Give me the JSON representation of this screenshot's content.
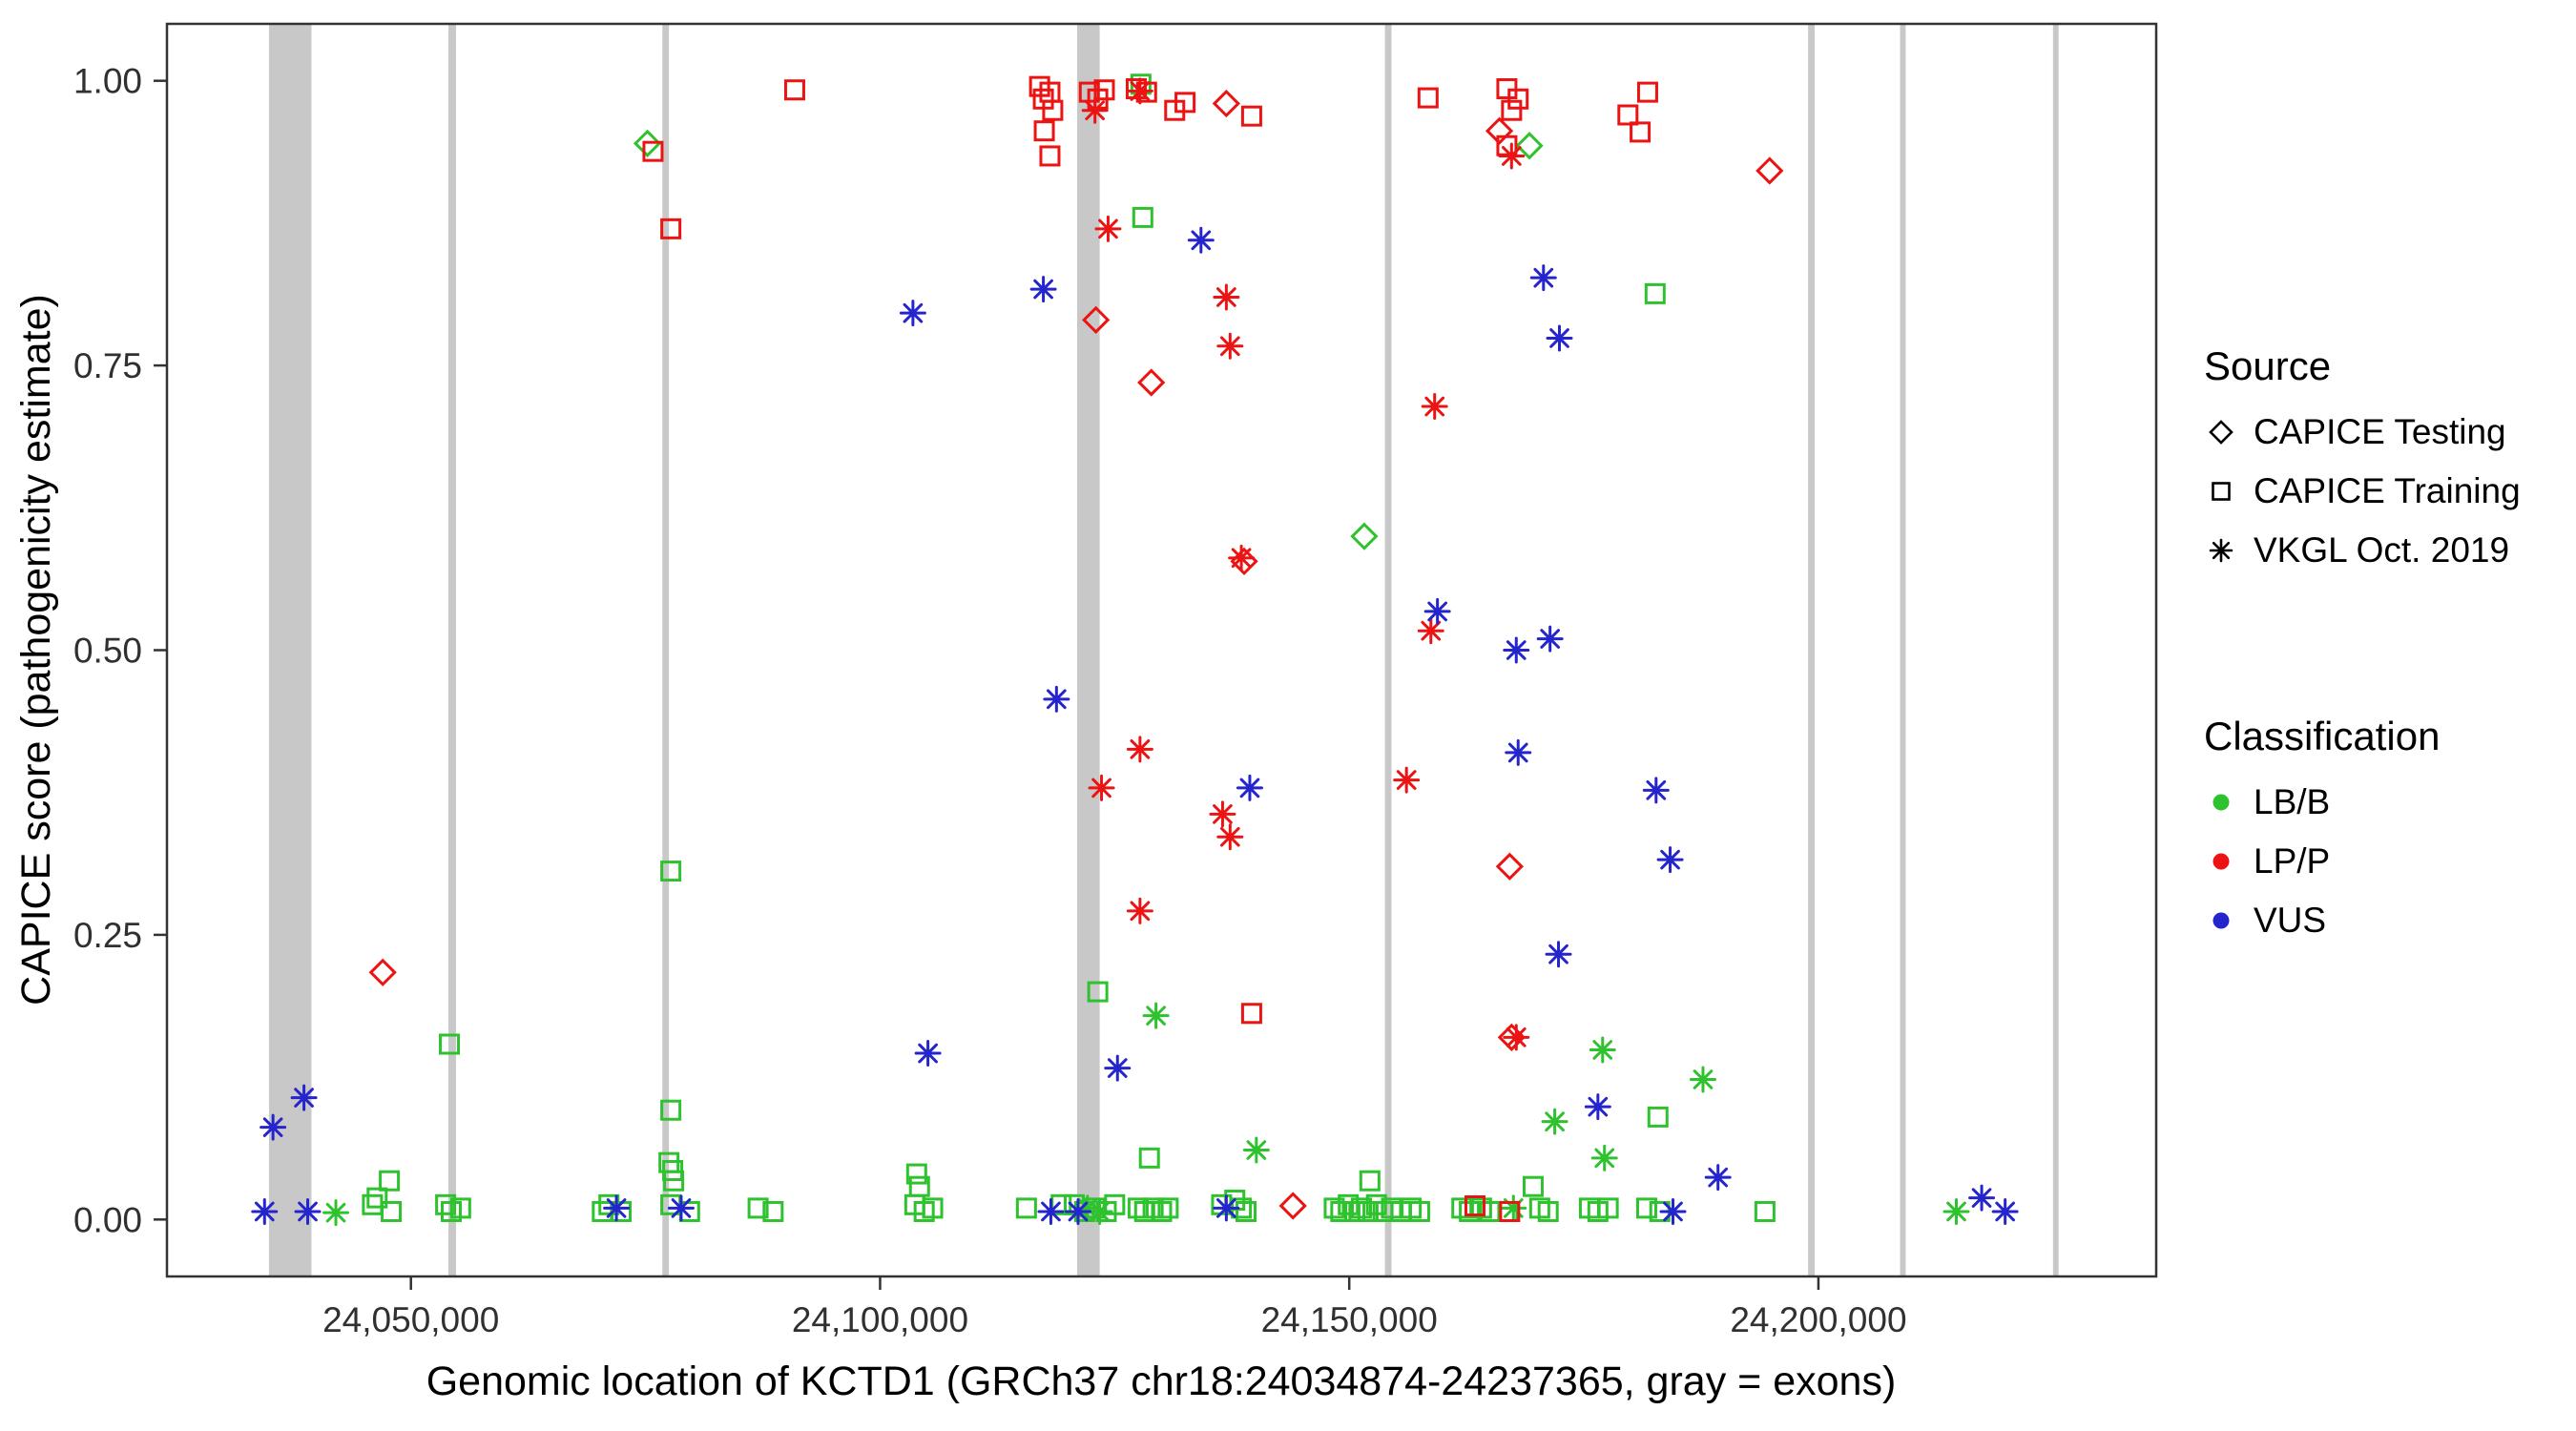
{
  "legend": {
    "source": {
      "title": "Source",
      "items": [
        {
          "label": "CAPICE Testing",
          "shape": "diamond"
        },
        {
          "label": "CAPICE Training",
          "shape": "square"
        },
        {
          "label": "VKGL Oct. 2019",
          "shape": "asterisk"
        }
      ]
    },
    "classification": {
      "title": "Classification",
      "items": [
        {
          "label": "LB/B",
          "color": "#2fc22f"
        },
        {
          "label": "LP/P",
          "color": "#ec1313"
        },
        {
          "label": "VUS",
          "color": "#2525cd"
        }
      ]
    }
  },
  "colors": {
    "lbb": "#2fc22f",
    "lpp": "#ec1313",
    "vus": "#2525cd",
    "exon": "#c8c8c8",
    "axis": "#333333",
    "tick_text": "#303030"
  },
  "chart_data": {
    "type": "scatter",
    "title": "",
    "xlabel": "Genomic location of KCTD1 (GRCh37 chr18:24034874-24237365, gray = exons)",
    "ylabel": "CAPICE score (pathogenicity estimate)",
    "xlim": [
      24024000,
      24236000
    ],
    "ylim": [
      -0.05,
      1.05
    ],
    "grid": false,
    "legend_position": "right",
    "x_ticks": [
      {
        "value": 24050000,
        "label": "24,050,000"
      },
      {
        "value": 24100000,
        "label": "24,100,000"
      },
      {
        "value": 24150000,
        "label": "24,150,000"
      },
      {
        "value": 24200000,
        "label": "24,200,000"
      }
    ],
    "y_ticks": [
      {
        "value": 0.0,
        "label": "0.00"
      },
      {
        "value": 0.25,
        "label": "0.25"
      },
      {
        "value": 0.5,
        "label": "0.50"
      },
      {
        "value": 0.75,
        "label": "0.75"
      },
      {
        "value": 1.0,
        "label": "1.00"
      }
    ],
    "exons": [
      [
        24034874,
        24039400
      ],
      [
        24054000,
        24054800
      ],
      [
        24076800,
        24077500
      ],
      [
        24121000,
        24123400
      ],
      [
        24153800,
        24154500
      ],
      [
        24198900,
        24199600
      ],
      [
        24208700,
        24209300
      ],
      [
        24225000,
        24225600
      ]
    ],
    "series": [
      {
        "name": "LB/B - CAPICE Testing",
        "classification": "LB/B",
        "source": "CAPICE Testing",
        "shape": "diamond",
        "color": "#2fc22f",
        "points": [
          [
            24075200,
            0.945
          ],
          [
            24151600,
            0.6
          ],
          [
            24169200,
            0.943
          ]
        ]
      },
      {
        "name": "LB/B - CAPICE Training",
        "classification": "LB/B",
        "source": "CAPICE Training",
        "shape": "square",
        "color": "#2fc22f",
        "points": [
          [
            24045900,
            0.013
          ],
          [
            24046400,
            0.019
          ],
          [
            24047700,
            0.034
          ],
          [
            24047900,
            0.007
          ],
          [
            24053700,
            0.013
          ],
          [
            24054100,
            0.154
          ],
          [
            24054300,
            0.007
          ],
          [
            24055300,
            0.01
          ],
          [
            24070400,
            0.007
          ],
          [
            24071100,
            0.013
          ],
          [
            24072400,
            0.007
          ],
          [
            24077500,
            0.05
          ],
          [
            24077700,
            0.306
          ],
          [
            24077700,
            0.096
          ],
          [
            24077900,
            0.043
          ],
          [
            24078000,
            0.034
          ],
          [
            24077700,
            0.013
          ],
          [
            24079700,
            0.007
          ],
          [
            24087000,
            0.01
          ],
          [
            24088600,
            0.007
          ],
          [
            24103700,
            0.013
          ],
          [
            24103900,
            0.04
          ],
          [
            24104200,
            0.029
          ],
          [
            24104700,
            0.007
          ],
          [
            24105600,
            0.01
          ],
          [
            24115600,
            0.01
          ],
          [
            24119300,
            0.013
          ],
          [
            24120700,
            0.013
          ],
          [
            24121800,
            0.007
          ],
          [
            24122900,
            0.01
          ],
          [
            24123200,
            0.2
          ],
          [
            24124100,
            0.007
          ],
          [
            24125000,
            0.013
          ],
          [
            24127500,
            0.01
          ],
          [
            24127800,
            0.997
          ],
          [
            24128000,
            0.88
          ],
          [
            24128200,
            0.007
          ],
          [
            24128700,
            0.054
          ],
          [
            24129100,
            0.01
          ],
          [
            24130000,
            0.007
          ],
          [
            24130700,
            0.01
          ],
          [
            24136400,
            0.013
          ],
          [
            24137800,
            0.017
          ],
          [
            24138500,
            0.01
          ],
          [
            24139000,
            0.007
          ],
          [
            24148400,
            0.01
          ],
          [
            24149100,
            0.007
          ],
          [
            24149900,
            0.013
          ],
          [
            24150600,
            0.007
          ],
          [
            24151300,
            0.01
          ],
          [
            24152000,
            0.007
          ],
          [
            24152200,
            0.034
          ],
          [
            24152900,
            0.013
          ],
          [
            24153600,
            0.007
          ],
          [
            24154500,
            0.01
          ],
          [
            24155500,
            0.007
          ],
          [
            24156600,
            0.01
          ],
          [
            24157500,
            0.007
          ],
          [
            24162000,
            0.01
          ],
          [
            24162800,
            0.007
          ],
          [
            24164100,
            0.01
          ],
          [
            24165000,
            0.007
          ],
          [
            24166900,
            0.007
          ],
          [
            24169600,
            0.029
          ],
          [
            24170300,
            0.01
          ],
          [
            24171200,
            0.007
          ],
          [
            24175600,
            0.01
          ],
          [
            24176500,
            0.007
          ],
          [
            24177600,
            0.01
          ],
          [
            24181700,
            0.01
          ],
          [
            24182600,
            0.813
          ],
          [
            24182900,
            0.09
          ],
          [
            24183100,
            0.007
          ],
          [
            24194300,
            0.007
          ]
        ]
      },
      {
        "name": "LB/B - VKGL Oct. 2019",
        "classification": "LB/B",
        "source": "VKGL Oct. 2019",
        "shape": "asterisk",
        "color": "#2fc22f",
        "points": [
          [
            24042000,
            0.006
          ],
          [
            24122100,
            0.01
          ],
          [
            24123400,
            0.007
          ],
          [
            24129400,
            0.179
          ],
          [
            24140100,
            0.061
          ],
          [
            24167500,
            0.01
          ],
          [
            24171900,
            0.086
          ],
          [
            24177000,
            0.149
          ],
          [
            24177200,
            0.054
          ],
          [
            24187700,
            0.123
          ],
          [
            24214700,
            0.007
          ]
        ]
      },
      {
        "name": "LP/P - CAPICE Testing",
        "classification": "LP/P",
        "source": "CAPICE Testing",
        "shape": "diamond",
        "color": "#ec1313",
        "points": [
          [
            24047000,
            0.217
          ],
          [
            24123000,
            0.79
          ],
          [
            24128900,
            0.735
          ],
          [
            24136900,
            0.98
          ],
          [
            24138800,
            0.578
          ],
          [
            24144000,
            0.012
          ],
          [
            24166000,
            0.956
          ],
          [
            24167100,
            0.31
          ],
          [
            24167300,
            0.16
          ],
          [
            24194800,
            0.921
          ]
        ]
      },
      {
        "name": "LP/P - CAPICE Training",
        "classification": "LP/P",
        "source": "CAPICE Training",
        "shape": "square",
        "color": "#ec1313",
        "points": [
          [
            24075800,
            0.938
          ],
          [
            24077700,
            0.87
          ],
          [
            24090900,
            0.992
          ],
          [
            24117000,
            0.995
          ],
          [
            24117400,
            0.984
          ],
          [
            24117500,
            0.956
          ],
          [
            24118100,
            0.99
          ],
          [
            24118100,
            0.934
          ],
          [
            24118400,
            0.974
          ],
          [
            24122300,
            0.99
          ],
          [
            24123200,
            0.984
          ],
          [
            24123900,
            0.992
          ],
          [
            24127300,
            0.993
          ],
          [
            24128400,
            0.99
          ],
          [
            24131400,
            0.974
          ],
          [
            24132500,
            0.981
          ],
          [
            24139600,
            0.969
          ],
          [
            24139600,
            0.181
          ],
          [
            24158400,
            0.985
          ],
          [
            24163400,
            0.012
          ],
          [
            24166800,
            0.993
          ],
          [
            24166800,
            0.943
          ],
          [
            24167100,
            0.007
          ],
          [
            24167300,
            0.974
          ],
          [
            24168000,
            0.984
          ],
          [
            24179700,
            0.97
          ],
          [
            24181000,
            0.955
          ],
          [
            24181800,
            0.99
          ]
        ]
      },
      {
        "name": "LP/P - VKGL Oct. 2019",
        "classification": "LP/P",
        "source": "VKGL Oct. 2019",
        "shape": "asterisk",
        "color": "#ec1313",
        "points": [
          [
            24122900,
            0.974
          ],
          [
            24123600,
            0.379
          ],
          [
            24124300,
            0.87
          ],
          [
            24127700,
            0.991
          ],
          [
            24127700,
            0.413
          ],
          [
            24127700,
            0.271
          ],
          [
            24136500,
            0.356
          ],
          [
            24136900,
            0.81
          ],
          [
            24137300,
            0.767
          ],
          [
            24137300,
            0.336
          ],
          [
            24138500,
            0.581
          ],
          [
            24156100,
            0.386
          ],
          [
            24158700,
            0.517
          ],
          [
            24159100,
            0.714
          ],
          [
            24167300,
            0.934
          ],
          [
            24167800,
            0.16
          ]
        ]
      },
      {
        "name": "VUS - VKGL Oct. 2019",
        "classification": "VUS",
        "source": "VKGL Oct. 2019",
        "shape": "asterisk",
        "color": "#2525cd",
        "points": [
          [
            24034400,
            0.007
          ],
          [
            24035300,
            0.081
          ],
          [
            24038600,
            0.107
          ],
          [
            24039000,
            0.007
          ],
          [
            24071900,
            0.01
          ],
          [
            24078800,
            0.01
          ],
          [
            24103500,
            0.796
          ],
          [
            24105100,
            0.146
          ],
          [
            24117400,
            0.817
          ],
          [
            24118200,
            0.007
          ],
          [
            24118800,
            0.457
          ],
          [
            24121100,
            0.007
          ],
          [
            24125300,
            0.133
          ],
          [
            24134200,
            0.86
          ],
          [
            24136900,
            0.01
          ],
          [
            24139400,
            0.379
          ],
          [
            24159400,
            0.534
          ],
          [
            24167800,
            0.5
          ],
          [
            24168000,
            0.41
          ],
          [
            24170700,
            0.827
          ],
          [
            24171400,
            0.51
          ],
          [
            24172300,
            0.233
          ],
          [
            24172400,
            0.774
          ],
          [
            24176500,
            0.099
          ],
          [
            24182700,
            0.377
          ],
          [
            24184200,
            0.316
          ],
          [
            24184500,
            0.007
          ],
          [
            24189300,
            0.037
          ],
          [
            24217400,
            0.019
          ],
          [
            24219900,
            0.007
          ]
        ]
      }
    ]
  }
}
